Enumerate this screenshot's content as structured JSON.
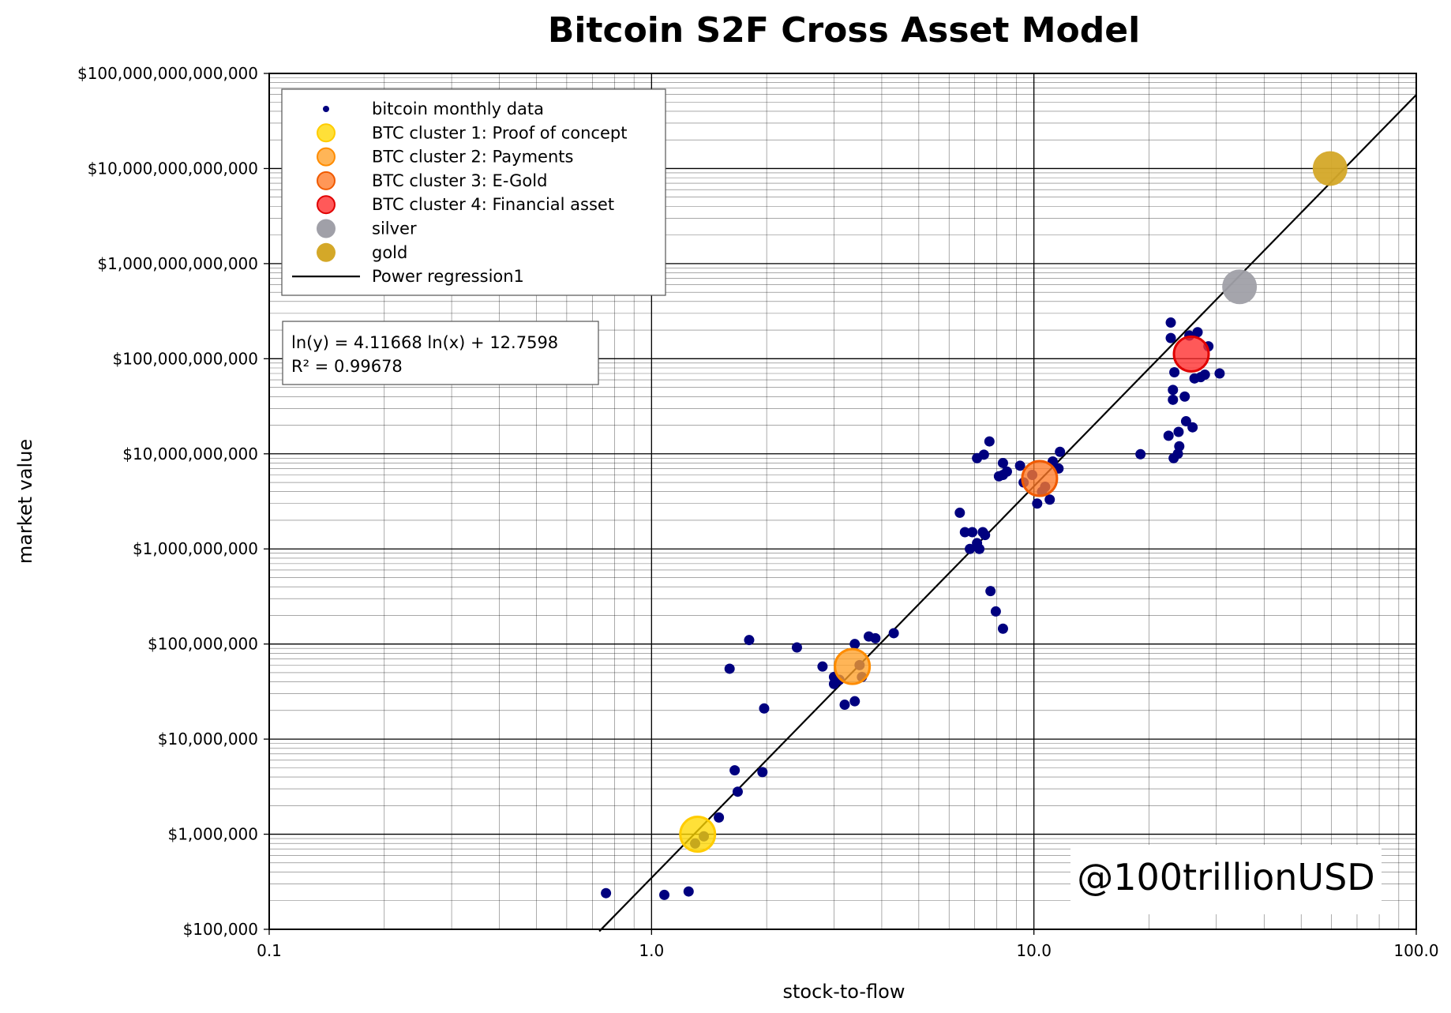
{
  "chart_data": {
    "type": "scatter",
    "title": "Bitcoin S2F Cross Asset Model",
    "xlabel": "stock-to-flow",
    "ylabel": "market value",
    "xscale": "log",
    "yscale": "log",
    "xlim": [
      0.1,
      100.0
    ],
    "ylim": [
      100000,
      100000000000000
    ],
    "grid": "major and minor",
    "x_ticks": [
      0.1,
      1.0,
      10.0,
      100.0
    ],
    "x_tick_labels": [
      "0.1",
      "1.0",
      "10.0",
      "100.0"
    ],
    "y_ticks": [
      100000,
      1000000,
      10000000,
      100000000,
      1000000000,
      10000000000,
      100000000000,
      1000000000000,
      10000000000000,
      100000000000000
    ],
    "y_tick_labels": [
      "$100,000",
      "$1,000,000",
      "$10,000,000",
      "$100,000,000",
      "$1,000,000,000",
      "$10,000,000,000",
      "$100,000,000,000",
      "$1,000,000,000,000",
      "$10,000,000,000,000",
      "$100,000,000,000,000"
    ],
    "legend_position": "top-left",
    "series": [
      {
        "name": "bitcoin monthly data",
        "type": "scatter",
        "color": "#00007f",
        "points": [
          [
            0.76,
            240000
          ],
          [
            1.08,
            230000
          ],
          [
            1.25,
            250000
          ],
          [
            1.3,
            800000
          ],
          [
            1.37,
            950000
          ],
          [
            1.5,
            1500000
          ],
          [
            1.65,
            4700000
          ],
          [
            1.68,
            2800000
          ],
          [
            1.95,
            4500000
          ],
          [
            1.6,
            55000000
          ],
          [
            1.8,
            110000000
          ],
          [
            1.97,
            21000000
          ],
          [
            2.4,
            92000000
          ],
          [
            2.8,
            58000000
          ],
          [
            3.0,
            45000000
          ],
          [
            3.0,
            38000000
          ],
          [
            3.1,
            42000000
          ],
          [
            3.2,
            23000000
          ],
          [
            3.4,
            25000000
          ],
          [
            3.4,
            100000000
          ],
          [
            3.5,
            60000000
          ],
          [
            3.55,
            45000000
          ],
          [
            3.7,
            120000000
          ],
          [
            3.85,
            115000000
          ],
          [
            4.3,
            130000000
          ],
          [
            6.4,
            2400000000
          ],
          [
            6.6,
            1500000000
          ],
          [
            6.8,
            1000000000
          ],
          [
            6.9,
            1500000000
          ],
          [
            7.1,
            1150000000
          ],
          [
            7.2,
            1000000000
          ],
          [
            7.35,
            1500000000
          ],
          [
            7.45,
            1400000000
          ],
          [
            7.1,
            9000000000
          ],
          [
            7.4,
            9800000000
          ],
          [
            7.65,
            13500000000
          ],
          [
            7.7,
            360000000
          ],
          [
            7.95,
            220000000
          ],
          [
            8.3,
            145000000
          ],
          [
            8.1,
            5800000000
          ],
          [
            8.3,
            8000000000
          ],
          [
            8.5,
            6500000000
          ],
          [
            8.3,
            6000000000
          ],
          [
            9.2,
            7500000000
          ],
          [
            9.4,
            5000000000
          ],
          [
            9.9,
            6000000000
          ],
          [
            10.2,
            3000000000
          ],
          [
            10.5,
            4000000000
          ],
          [
            10.7,
            4500000000
          ],
          [
            11.0,
            3300000000
          ],
          [
            11.2,
            8300000000
          ],
          [
            11.6,
            7000000000
          ],
          [
            11.7,
            10500000000
          ],
          [
            19.0,
            9900000000
          ],
          [
            22.5,
            15500000000
          ],
          [
            23.2,
            9000000000
          ],
          [
            23.8,
            10000000000
          ],
          [
            24.0,
            12000000000
          ],
          [
            23.9,
            17000000000
          ],
          [
            25.0,
            22000000000
          ],
          [
            26.0,
            19000000000
          ],
          [
            22.8,
            240000000000
          ],
          [
            22.8,
            165000000000
          ],
          [
            23.1,
            47000000000
          ],
          [
            23.1,
            37000000000
          ],
          [
            23.3,
            72000000000
          ],
          [
            24.8,
            40000000000
          ],
          [
            25.5,
            175000000000
          ],
          [
            26.3,
            62000000000
          ],
          [
            26.8,
            190000000000
          ],
          [
            27.3,
            64000000000
          ],
          [
            28.0,
            68000000000
          ],
          [
            28.6,
            135000000000
          ],
          [
            30.6,
            70000000000
          ]
        ]
      },
      {
        "name": "BTC cluster 1: Proof of concept",
        "type": "cluster",
        "color": "#ffd700",
        "edge": "#ffcc00",
        "points": [
          [
            1.32,
            1000000
          ]
        ]
      },
      {
        "name": "BTC cluster 2: Payments",
        "type": "cluster",
        "color": "#ffa028",
        "edge": "#ff8c00",
        "points": [
          [
            3.35,
            58000000
          ]
        ]
      },
      {
        "name": "BTC cluster 3: E-Gold",
        "type": "cluster",
        "color": "#ff7a28",
        "edge": "#f05a00",
        "points": [
          [
            10.35,
            5500000000
          ]
        ]
      },
      {
        "name": "BTC cluster 4: Financial asset",
        "type": "cluster",
        "color": "#ff2a2a",
        "edge": "#e00000",
        "points": [
          [
            25.8,
            112000000000
          ]
        ]
      },
      {
        "name": "silver",
        "type": "asset",
        "color": "#a0a0a8",
        "points": [
          [
            34.5,
            570000000000
          ]
        ]
      },
      {
        "name": "gold",
        "type": "asset",
        "color": "#d4a828",
        "points": [
          [
            59.5,
            10000000000000
          ]
        ]
      },
      {
        "name": "Power regression1",
        "type": "line",
        "color": "#000000",
        "slope": 4.11668,
        "intercept": 12.7598,
        "x_range": [
          0.73,
          100.0
        ]
      }
    ],
    "annotation": {
      "equation": "ln(y) = 4.11668 ln(x) + 12.7598",
      "r_squared": "R² = 0.99678"
    },
    "watermark": "@100trillionUSD"
  }
}
